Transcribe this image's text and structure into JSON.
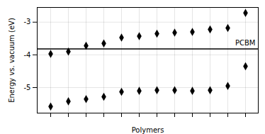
{
  "chart_data": {
    "type": "scatter",
    "xlabel": "Polymers",
    "ylabel": "Energy vs. vacuum (eV)",
    "categories": [
      null,
      null,
      null,
      null,
      null,
      null,
      null,
      null,
      null,
      null,
      null,
      null
    ],
    "series": [
      {
        "values": [
          -3.97,
          -3.9,
          -3.72,
          -3.65,
          -3.47,
          -3.43,
          -3.35,
          -3.32,
          -3.3,
          -3.22,
          -3.18,
          -2.72
        ],
        "color": "black",
        "marker": "diamond"
      },
      {
        "values": [
          -5.58,
          -5.42,
          -5.35,
          -5.28,
          -5.13,
          -5.1,
          -5.08,
          -5.08,
          -5.1,
          -5.08,
          -4.95,
          -4.35
        ],
        "color": "black",
        "marker": "diamond"
      }
    ],
    "reference_line": {
      "value": -3.82,
      "label": "PCBM",
      "color": "black"
    },
    "ylim": [
      -5.78,
      -2.55
    ],
    "yticks": [
      -5.0,
      -4.0,
      -3.0
    ],
    "grid": true,
    "tick_labels": "y"
  }
}
